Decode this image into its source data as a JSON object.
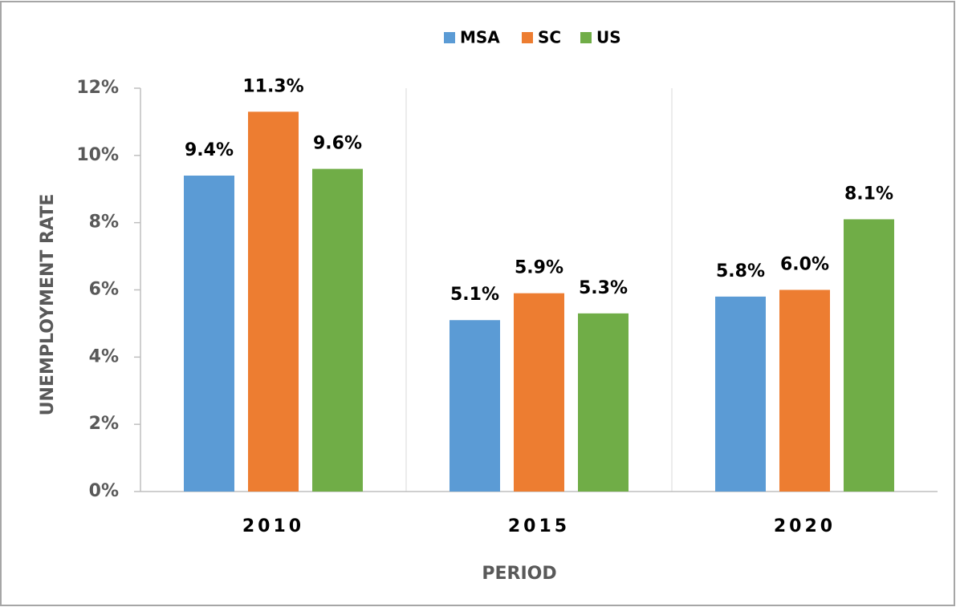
{
  "chart_data": {
    "type": "bar",
    "categories": [
      "2010",
      "2015",
      "2020"
    ],
    "series": [
      {
        "name": "MSA",
        "color": "#5b9bd5",
        "values": [
          9.4,
          5.1,
          5.8
        ],
        "value_labels": [
          "9.4%",
          "5.1%",
          "5.8%"
        ]
      },
      {
        "name": "SC",
        "color": "#ed7d31",
        "values": [
          11.3,
          5.9,
          6.0
        ],
        "value_labels": [
          "11.3%",
          "5.9%",
          "6.0%"
        ]
      },
      {
        "name": "US",
        "color": "#70ad47",
        "values": [
          9.6,
          5.3,
          8.1
        ],
        "value_labels": [
          "9.6%",
          "5.3%",
          "8.1%"
        ]
      }
    ],
    "ylim": [
      0,
      12
    ],
    "yticks": [
      {
        "value": 0,
        "label": "0%"
      },
      {
        "value": 2,
        "label": "2%"
      },
      {
        "value": 4,
        "label": "4%"
      },
      {
        "value": 6,
        "label": "6%"
      },
      {
        "value": 8,
        "label": "8%"
      },
      {
        "value": 10,
        "label": "10%"
      },
      {
        "value": 12,
        "label": "12%"
      }
    ],
    "ylabel": "UNEMPLOYMENT RATE",
    "xlabel": "PERIOD",
    "legend": "top"
  }
}
